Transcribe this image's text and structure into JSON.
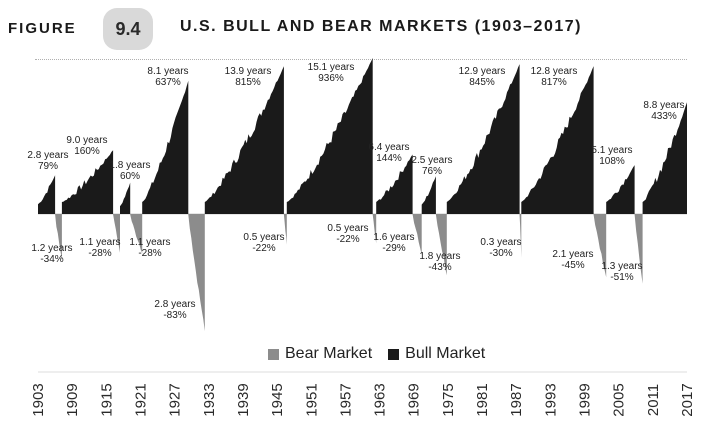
{
  "header": {
    "figure_word": "FIGURE",
    "figure_number": "9.4",
    "title": "U.S. BULL AND BEAR MARKETS (1903–2017)"
  },
  "legend": {
    "bear_label": "Bear Market",
    "bull_label": "Bull Market"
  },
  "colors": {
    "bull": "#1a1a1a",
    "bear": "#8c8c8c"
  },
  "chart_data": {
    "type": "area",
    "x_ticks": [
      "1903",
      "1909",
      "1915",
      "1921",
      "1927",
      "1933",
      "1939",
      "1945",
      "1951",
      "1957",
      "1963",
      "1969",
      "1975",
      "1981",
      "1987",
      "1993",
      "1999",
      "2005",
      "2011",
      "2017"
    ],
    "xlim": [
      1903,
      2017
    ],
    "series": [
      {
        "name": "Bull Market",
        "segments": [
          {
            "start": 1903.0,
            "end": 1906.0,
            "duration": "2.8 years",
            "change": "79%",
            "pct": 79
          },
          {
            "start": 1907.2,
            "end": 1916.2,
            "duration": "9.0 years",
            "change": "160%",
            "pct": 160
          },
          {
            "start": 1917.4,
            "end": 1919.2,
            "duration": "1.8 years",
            "change": "60%",
            "pct": 60
          },
          {
            "start": 1921.3,
            "end": 1929.4,
            "duration": "8.1 years",
            "change": "637%",
            "pct": 637
          },
          {
            "start": 1932.3,
            "end": 1946.2,
            "duration": "13.9 years",
            "change": "815%",
            "pct": 815
          },
          {
            "start": 1946.7,
            "end": 1961.8,
            "duration": "15.1 years",
            "change": "936%",
            "pct": 936
          },
          {
            "start": 1962.4,
            "end": 1968.8,
            "duration": "6.4 years",
            "change": "144%",
            "pct": 144
          },
          {
            "start": 1970.4,
            "end": 1972.9,
            "duration": "2.5 years",
            "change": "76%",
            "pct": 76
          },
          {
            "start": 1974.8,
            "end": 1987.6,
            "duration": "12.9 years",
            "change": "845%",
            "pct": 845
          },
          {
            "start": 1987.9,
            "end": 2000.6,
            "duration": "12.8 years",
            "change": "817%",
            "pct": 817
          },
          {
            "start": 2002.8,
            "end": 2007.8,
            "duration": "5.1 years",
            "change": "108%",
            "pct": 108
          },
          {
            "start": 2009.2,
            "end": 2018.0,
            "duration": "8.8 years",
            "change": "433%",
            "pct": 433
          }
        ]
      },
      {
        "name": "Bear Market",
        "segments": [
          {
            "start": 1906.0,
            "end": 1907.2,
            "duration": "1.2 years",
            "change": "-34%",
            "pct": -34
          },
          {
            "start": 1916.2,
            "end": 1917.4,
            "duration": "1.1 years",
            "change": "-28%",
            "pct": -28
          },
          {
            "start": 1919.2,
            "end": 1921.3,
            "duration": "1.1 years",
            "change": "-28%",
            "pct": -28
          },
          {
            "start": 1929.4,
            "end": 1932.3,
            "duration": "2.8 years",
            "change": "-83%",
            "pct": -83
          },
          {
            "start": 1946.2,
            "end": 1946.7,
            "duration": "0.5 years",
            "change": "-22%",
            "pct": -22
          },
          {
            "start": 1961.8,
            "end": 1962.4,
            "duration": "0.5 years",
            "change": "-22%",
            "pct": -22
          },
          {
            "start": 1968.8,
            "end": 1970.4,
            "duration": "1.6 years",
            "change": "-29%",
            "pct": -29
          },
          {
            "start": 1972.9,
            "end": 1974.8,
            "duration": "1.8 years",
            "change": "-43%",
            "pct": -43
          },
          {
            "start": 1987.6,
            "end": 1987.9,
            "duration": "0.3 years",
            "change": "-30%",
            "pct": -30
          },
          {
            "start": 2000.6,
            "end": 2002.8,
            "duration": "2.1 years",
            "change": "-45%",
            "pct": -45
          },
          {
            "start": 2007.8,
            "end": 2009.2,
            "duration": "1.3 years",
            "change": "-51%",
            "pct": -51
          }
        ]
      }
    ]
  }
}
